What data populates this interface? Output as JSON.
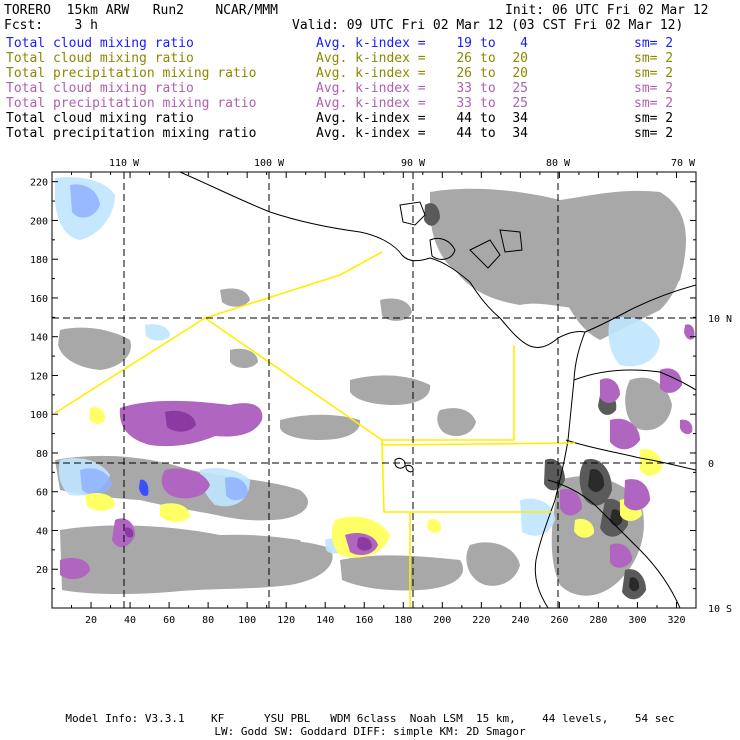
{
  "header": {
    "model": "TORERO  15km ARW   Run2    NCAR/MMM",
    "init": "Init: 06 UTC Fri 02 Mar 12",
    "fcst": "Fcst:    3 h",
    "valid": "Valid: 09 UTC Fri 02 Mar 12 (03 CST Fri 02 Mar 12)"
  },
  "fields": [
    {
      "name": "Total cloud mixing ratio",
      "avg": "Avg. k-index =",
      "from": "19",
      "to_word": "to",
      "to": "4",
      "sm": "sm= 2",
      "color": "#1a1aff"
    },
    {
      "name": "Total cloud mixing ratio",
      "avg": "Avg. k-index =",
      "from": "26",
      "to_word": "to",
      "to": "20",
      "sm": "sm= 2",
      "color": "#8a8a00"
    },
    {
      "name": "Total precipitation mixing ratio",
      "avg": "Avg. k-index =",
      "from": "26",
      "to_word": "to",
      "to": "20",
      "sm": "sm= 2",
      "color": "#8a8a00"
    },
    {
      "name": "Total cloud mixing ratio",
      "avg": "Avg. k-index =",
      "from": "33",
      "to_word": "to",
      "to": "25",
      "sm": "sm= 2",
      "color": "#b060b0"
    },
    {
      "name": "Total precipitation mixing ratio",
      "avg": "Avg. k-index =",
      "from": "33",
      "to_word": "to",
      "to": "25",
      "sm": "sm= 2",
      "color": "#b060b0"
    },
    {
      "name": "Total cloud mixing ratio",
      "avg": "Avg. k-index =",
      "from": "44",
      "to_word": "to",
      "to": "34",
      "sm": "sm= 2",
      "color": "#000000"
    },
    {
      "name": "Total precipitation mixing ratio",
      "avg": "Avg. k-index =",
      "from": "44",
      "to_word": "to",
      "to": "34",
      "sm": "sm= 2",
      "color": "#000000"
    }
  ],
  "map": {
    "lon_labels": [
      "110 W",
      "100 W",
      "90 W",
      "80 W",
      "70 W"
    ],
    "lat_labels": [
      "10 N",
      "0",
      "10 S"
    ],
    "x_ticks": [
      "20",
      "40",
      "60",
      "80",
      "100",
      "120",
      "140",
      "160",
      "180",
      "200",
      "220",
      "240",
      "260",
      "280",
      "300",
      "320"
    ],
    "y_ticks": [
      "20",
      "40",
      "60",
      "80",
      "100",
      "120",
      "140",
      "160",
      "180",
      "200",
      "220"
    ],
    "colors": {
      "grey": "#a8a8a8",
      "dark_grey": "#5a5a5a",
      "darkest": "#2a2a2a",
      "light_blue": "#bfe6ff",
      "blue": "#8fb0ff",
      "deep_blue": "#3850ff",
      "yellow": "#ffff66",
      "purple": "#b065c0",
      "dark_purple": "#8a3aa0",
      "boundary": "#ffee00"
    }
  },
  "footer": {
    "line1": "Model Info: V3.3.1    KF      YSU PBL   WDM 6class  Noah LSM  15 km,    44 levels,    54 sec",
    "line2": "LW: Godd SW: Goddard DIFF: simple KM: 2D Smagor"
  }
}
